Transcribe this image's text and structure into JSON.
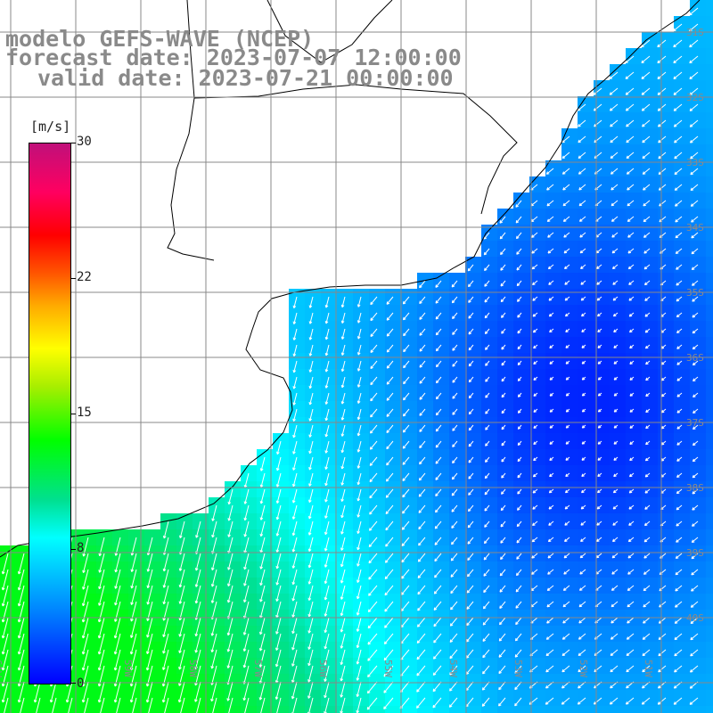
{
  "title": {
    "line1": "modelo GEFS-WAVE (NCEP)",
    "line2": "forecast date: 2023-07-07 12:00:00",
    "line3": "valid date: 2023-07-21 00:00:00"
  },
  "colorbar": {
    "unit": "[m/s]",
    "ticks": [
      "30",
      "22",
      "15",
      "8",
      "0"
    ],
    "tick_values": [
      30,
      22,
      15,
      8,
      0
    ],
    "range": [
      0,
      30
    ]
  },
  "map": {
    "lat_labels": [
      "31S",
      "32S",
      "33S",
      "34S",
      "35S",
      "36S",
      "37S",
      "38S",
      "39S",
      "40S"
    ],
    "lon_labels": [
      "61W",
      "60W",
      "59W",
      "58W",
      "57W",
      "56W",
      "55W",
      "54W",
      "53W",
      "52W",
      "51W"
    ],
    "field_variable": "wind speed (m/s) with direction arrows",
    "colors": {
      "calm": "#0000ff",
      "moderate": "#00ffff",
      "strong": "#00ff00",
      "grid": "#888888"
    }
  }
}
